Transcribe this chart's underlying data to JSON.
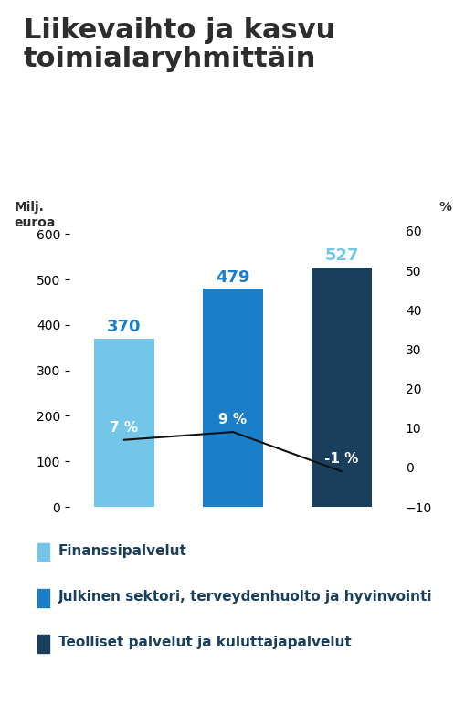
{
  "title_line1": "Liikevaihto ja kasvu",
  "title_line2": "toimialaryhmittäin",
  "title_fontsize": 22,
  "title_fontweight": "bold",
  "title_color": "#2d2d2d",
  "background_color": "#ffffff",
  "bar_values": [
    370,
    479,
    527
  ],
  "bar_colors": [
    "#74c6e8",
    "#1a7ec8",
    "#1a3f5c"
  ],
  "bar_value_labels": [
    "370",
    "479",
    "527"
  ],
  "bar_value_label_colors": [
    "#1a7ec8",
    "#1a7ec8",
    "#74c6e8"
  ],
  "growth_values": [
    7,
    9,
    -1
  ],
  "growth_labels": [
    "7 %",
    "9 %",
    "-1 %"
  ],
  "growth_label_colors": [
    "#ffffff",
    "#ffffff",
    "#ffffff"
  ],
  "growth_line_color": "#111111",
  "ylabel_left": "Milj.\neuroa",
  "ylabel_right": "%",
  "ylim_left": [
    0,
    650
  ],
  "ylim_right": [
    -10,
    65
  ],
  "yticks_left": [
    0,
    100,
    200,
    300,
    400,
    500,
    600
  ],
  "yticks_right": [
    -10,
    0,
    10,
    20,
    30,
    40,
    50,
    60
  ],
  "legend_labels": [
    "Finanssipalvelut",
    "Julkinen sektori, terveydenhuolto ja hyvinvointi",
    "Teolliset palvelut ja kuluttajapalvelut"
  ],
  "legend_colors": [
    "#74c6e8",
    "#1a7ec8",
    "#1a3f5c"
  ],
  "legend_label_color": "#1a3f5c",
  "bar_width": 0.55,
  "bar_positions": [
    0,
    1,
    2
  ],
  "tick_fontsize": 10,
  "ylabel_fontsize": 10,
  "legend_fontsize": 11
}
